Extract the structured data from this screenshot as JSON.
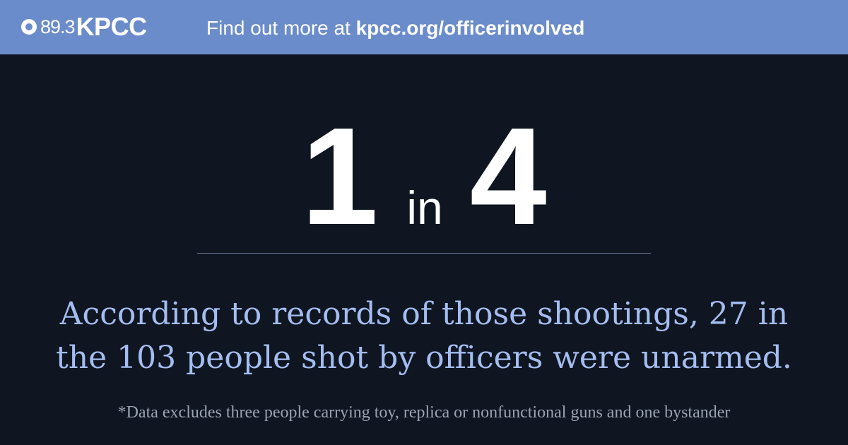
{
  "header": {
    "logo": {
      "frequency": "89.3",
      "callsign": "KPCC"
    },
    "cta_prefix": "Find out more at ",
    "cta_url": "kpcc.org/officerinvolved"
  },
  "stat": {
    "numerator": "1",
    "connector": "in",
    "denominator": "4"
  },
  "body": {
    "line1": "According to records of those shootings, 27 in",
    "line2": "the 103 people shot by officers were unarmed."
  },
  "footnote": "*Data excludes three people carrying toy, replica or nonfunctional guns and one bystander",
  "colors": {
    "header_bg": "#6b8cca",
    "page_bg": "#0f1621",
    "body_text": "#a4bdf1",
    "footnote_text": "#9aa3b3"
  }
}
